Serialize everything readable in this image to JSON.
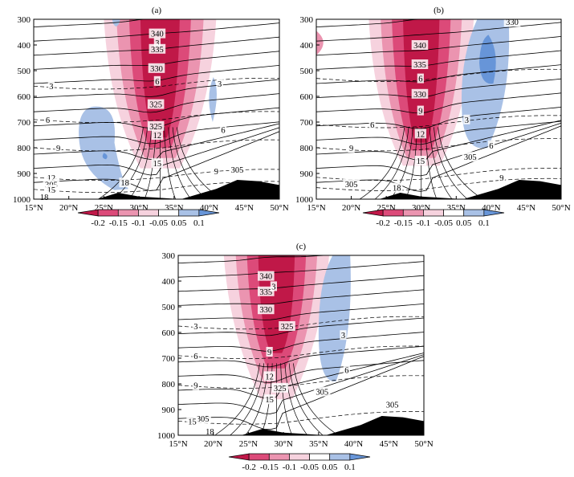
{
  "chart_data": [
    {
      "type": "contour",
      "panel_label": "(a)",
      "x_ticks": [
        "15°N",
        "20°N",
        "25°N",
        "30°N",
        "35°N",
        "40°N",
        "45°N",
        "50°N"
      ],
      "y_ticks": [
        "300",
        "400",
        "500",
        "600",
        "700",
        "800",
        "900",
        "1000"
      ],
      "xlim": [
        15,
        50
      ],
      "ylim": [
        1000,
        300
      ],
      "y_reversed": true,
      "theta_labels": [
        {
          "text": "340",
          "lat": 32.6,
          "p": 355
        },
        {
          "text": "3",
          "lat": 32.6,
          "p": 390
        },
        {
          "text": "335",
          "lat": 32.6,
          "p": 415
        },
        {
          "text": "330",
          "lat": 32.5,
          "p": 490
        },
        {
          "text": "325",
          "lat": 32.4,
          "p": 630
        },
        {
          "text": "305",
          "lat": 44.0,
          "p": 885
        }
      ],
      "anomaly_labels": [
        {
          "text": "6",
          "lat": 32.6,
          "p": 540
        },
        {
          "text": "325",
          "lat": 32.4,
          "p": 715
        },
        {
          "text": "12",
          "lat": 32.6,
          "p": 750
        },
        {
          "text": "15",
          "lat": 32.6,
          "p": 860
        },
        {
          "text": "3",
          "lat": 17.5,
          "p": 560
        },
        {
          "text": "3",
          "lat": 41.5,
          "p": 550
        },
        {
          "text": "6",
          "lat": 17.0,
          "p": 690
        },
        {
          "text": "6",
          "lat": 42.0,
          "p": 730
        },
        {
          "text": "9",
          "lat": 18.5,
          "p": 800
        },
        {
          "text": "9",
          "lat": 41.0,
          "p": 890
        },
        {
          "text": "12",
          "lat": 17.5,
          "p": 915
        },
        {
          "text": "305",
          "lat": 17.5,
          "p": 942
        },
        {
          "text": "15",
          "lat": 17.5,
          "p": 962
        },
        {
          "text": "18",
          "lat": 16.5,
          "p": 990
        },
        {
          "text": "18",
          "lat": 28.0,
          "p": 935
        }
      ]
    },
    {
      "type": "contour",
      "panel_label": "(b)",
      "x_ticks": [
        "15°N",
        "20°N",
        "25°N",
        "30°N",
        "35°N",
        "40°N",
        "45°N",
        "50°N"
      ],
      "y_ticks": [
        "300",
        "400",
        "500",
        "600",
        "700",
        "800",
        "900",
        "1000"
      ],
      "xlim": [
        15,
        50
      ],
      "ylim": [
        1000,
        300
      ],
      "y_reversed": true,
      "theta_labels": [
        {
          "text": "340",
          "lat": 29.8,
          "p": 400
        },
        {
          "text": "335",
          "lat": 29.8,
          "p": 475
        },
        {
          "text": "330",
          "lat": 29.8,
          "p": 590
        },
        {
          "text": "330",
          "lat": 43.0,
          "p": 310
        },
        {
          "text": "305",
          "lat": 37.0,
          "p": 835
        },
        {
          "text": "305",
          "lat": 20.0,
          "p": 940
        }
      ],
      "anomaly_labels": [
        {
          "text": "6",
          "lat": 29.9,
          "p": 530
        },
        {
          "text": "9",
          "lat": 29.9,
          "p": 655
        },
        {
          "text": "12",
          "lat": 29.9,
          "p": 745
        },
        {
          "text": "15",
          "lat": 29.9,
          "p": 850
        },
        {
          "text": "3",
          "lat": 36.5,
          "p": 690
        },
        {
          "text": "6",
          "lat": 23.0,
          "p": 710
        },
        {
          "text": "6",
          "lat": 40.0,
          "p": 790
        },
        {
          "text": "9",
          "lat": 20.0,
          "p": 800
        },
        {
          "text": "9",
          "lat": 41.5,
          "p": 915
        },
        {
          "text": "18",
          "lat": 26.5,
          "p": 955
        }
      ]
    },
    {
      "type": "contour",
      "panel_label": "(c)",
      "x_ticks": [
        "15°N",
        "20°N",
        "25°N",
        "30°N",
        "35°N",
        "40°N",
        "45°N",
        "50°N"
      ],
      "y_ticks": [
        "300",
        "400",
        "500",
        "600",
        "700",
        "800",
        "900",
        "1000"
      ],
      "xlim": [
        15,
        50
      ],
      "ylim": [
        1000,
        300
      ],
      "y_reversed": true,
      "theta_labels": [
        {
          "text": "340",
          "lat": 27.5,
          "p": 380
        },
        {
          "text": "335",
          "lat": 27.5,
          "p": 440
        },
        {
          "text": "3",
          "lat": 28.6,
          "p": 420
        },
        {
          "text": "330",
          "lat": 27.5,
          "p": 510
        },
        {
          "text": "325",
          "lat": 30.5,
          "p": 575
        },
        {
          "text": "325",
          "lat": 29.5,
          "p": 815
        },
        {
          "text": "305",
          "lat": 35.5,
          "p": 830
        },
        {
          "text": "305",
          "lat": 45.5,
          "p": 880
        },
        {
          "text": "305",
          "lat": 18.5,
          "p": 935
        }
      ],
      "anomaly_labels": [
        {
          "text": "3",
          "lat": 17.5,
          "p": 575
        },
        {
          "text": "3",
          "lat": 38.5,
          "p": 610
        },
        {
          "text": "6",
          "lat": 17.5,
          "p": 690
        },
        {
          "text": "6",
          "lat": 39.0,
          "p": 745
        },
        {
          "text": "9",
          "lat": 17.5,
          "p": 805
        },
        {
          "text": "9",
          "lat": 28.0,
          "p": 675
        },
        {
          "text": "12",
          "lat": 28.0,
          "p": 770
        },
        {
          "text": "15",
          "lat": 28.0,
          "p": 860
        },
        {
          "text": "15",
          "lat": 17.0,
          "p": 945
        },
        {
          "text": "18",
          "lat": 19.5,
          "p": 985
        }
      ]
    }
  ],
  "colorbar": {
    "tick_labels": [
      "-0.2",
      "-0.15",
      "-0.1",
      "-0.05",
      "0.05",
      "0.1"
    ],
    "colors": [
      "#c01848",
      "#dc4a79",
      "#eb94b0",
      "#f6d2de",
      "#ffffff",
      "#a9c1e6",
      "#6795d8"
    ]
  }
}
